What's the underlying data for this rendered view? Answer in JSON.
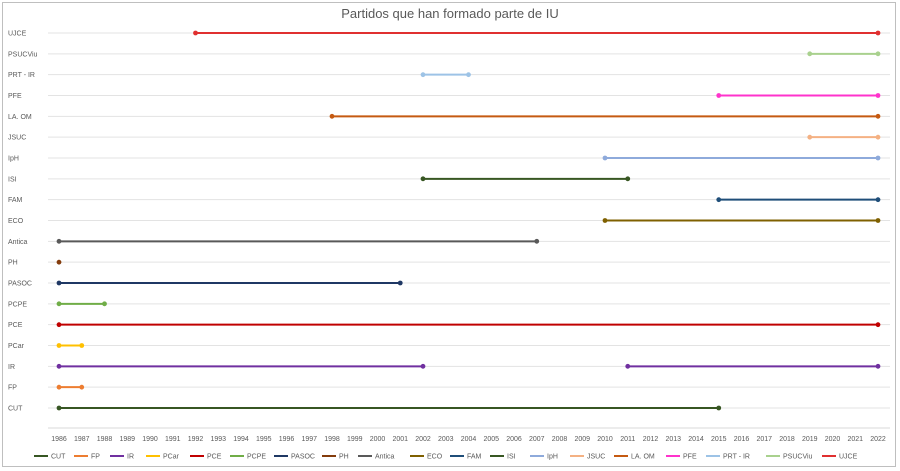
{
  "chart_data": {
    "type": "line",
    "title": "Partidos que han formado parte de IU",
    "x_ticks": [
      1986,
      1987,
      1988,
      1989,
      1990,
      1991,
      1992,
      1993,
      1994,
      1995,
      1996,
      1997,
      1998,
      1999,
      2000,
      2001,
      2002,
      2003,
      2004,
      2005,
      2006,
      2007,
      2008,
      2009,
      2010,
      2011,
      2012,
      2013,
      2014,
      2015,
      2016,
      2017,
      2018,
      2019,
      2020,
      2021,
      2022
    ],
    "xlim": [
      1986,
      2022
    ],
    "grid": "horizontal",
    "legend_position": "bottom",
    "series": [
      {
        "name": "CUT",
        "color": "#375623",
        "segments": [
          [
            1986,
            2015
          ]
        ]
      },
      {
        "name": "FP",
        "color": "#ed7d31",
        "segments": [
          [
            1986,
            1987
          ]
        ]
      },
      {
        "name": "IR",
        "color": "#7030a0",
        "segments": [
          [
            1986,
            2002
          ],
          [
            2011,
            2022
          ]
        ]
      },
      {
        "name": "PCar",
        "color": "#ffc000",
        "segments": [
          [
            1986,
            1987
          ]
        ]
      },
      {
        "name": "PCE",
        "color": "#c00000",
        "segments": [
          [
            1986,
            2022
          ]
        ]
      },
      {
        "name": "PCPE",
        "color": "#70ad47",
        "segments": [
          [
            1986,
            1988
          ]
        ]
      },
      {
        "name": "PASOC",
        "color": "#1f3864",
        "segments": [
          [
            1986,
            2001
          ]
        ]
      },
      {
        "name": "PH",
        "color": "#843c0c",
        "segments": [
          [
            1986,
            1986
          ]
        ]
      },
      {
        "name": "Antica",
        "color": "#595959",
        "segments": [
          [
            1986,
            2007
          ]
        ]
      },
      {
        "name": "ECO",
        "color": "#7f6000",
        "segments": [
          [
            2010,
            2022
          ]
        ]
      },
      {
        "name": "FAM",
        "color": "#1f4e79",
        "segments": [
          [
            2015,
            2022
          ]
        ]
      },
      {
        "name": "ISI",
        "color": "#385723",
        "segments": [
          [
            2002,
            2011
          ]
        ]
      },
      {
        "name": "IpH",
        "color": "#8eaadb",
        "segments": [
          [
            2010,
            2022
          ]
        ]
      },
      {
        "name": "JSUC",
        "color": "#f4b183",
        "segments": [
          [
            2019,
            2022
          ]
        ]
      },
      {
        "name": "LA. OM",
        "color": "#c55a11",
        "segments": [
          [
            1998,
            2022
          ]
        ]
      },
      {
        "name": "PFE",
        "color": "#ff33cc",
        "segments": [
          [
            2015,
            2022
          ]
        ]
      },
      {
        "name": "PRT - IR",
        "color": "#9dc3e6",
        "segments": [
          [
            2002,
            2004
          ]
        ]
      },
      {
        "name": "PSUCViu",
        "color": "#a9d18e",
        "segments": [
          [
            2019,
            2022
          ]
        ]
      },
      {
        "name": "UJCE",
        "color": "#e03030",
        "segments": [
          [
            1992,
            2022
          ]
        ]
      }
    ]
  }
}
